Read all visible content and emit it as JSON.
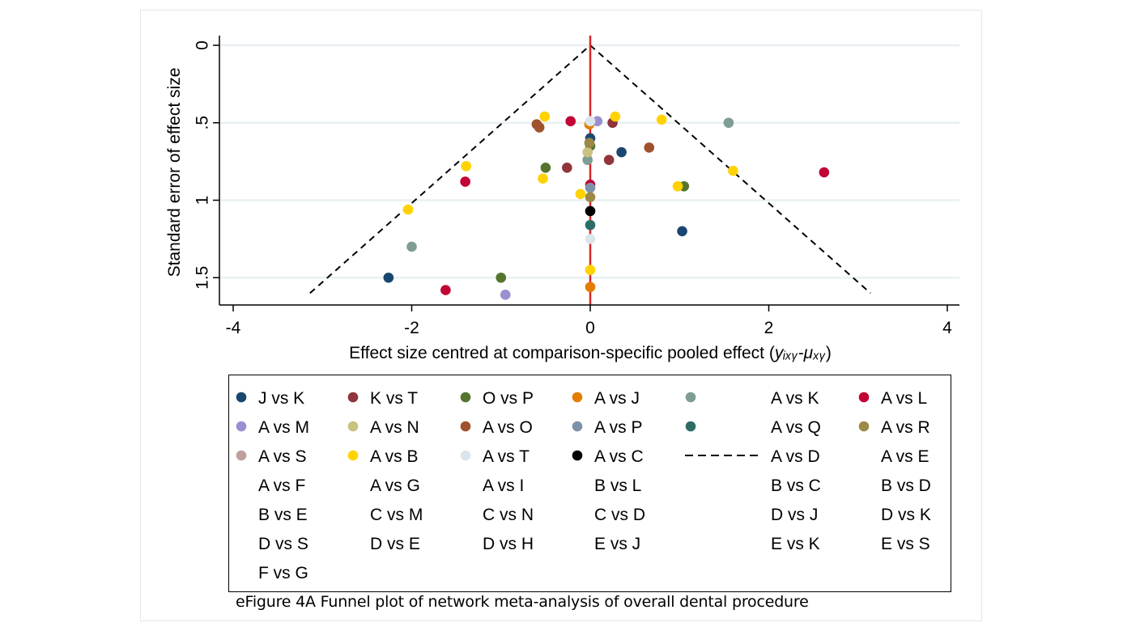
{
  "caption": "eFigure 4A Funnel plot of network meta-analysis of overall dental procedure",
  "chart_data": {
    "type": "scatter",
    "xlabel": "Effect size centred at comparison-specific pooled effect (",
    "xlabel_math": "yᵢₓᵧ-μₓᵧ",
    "xlabel_close": ")",
    "ylabel": "Standard error of effect size",
    "xlim": [
      -4,
      4
    ],
    "ylim": [
      0,
      1.6
    ],
    "y_reversed": true,
    "x_ticks": [
      -4,
      -2,
      0,
      2,
      4
    ],
    "x_tick_labels": [
      "-4",
      "-2",
      "0",
      "2",
      "4"
    ],
    "y_ticks": [
      0,
      0.5,
      1,
      1.5
    ],
    "y_tick_labels": [
      "0",
      ".5",
      "1",
      "1.5"
    ],
    "reference_line": {
      "x": 0,
      "color": "#d62728"
    },
    "funnel_lines": {
      "apex": [
        0,
        0
      ],
      "left_end": [
        -3.14,
        1.6
      ],
      "right_end": [
        3.14,
        1.6
      ]
    },
    "grid": "horizontal",
    "legend_position": "bottom",
    "series": [
      {
        "name": "J vs K",
        "color": "#1a476f",
        "points": [
          [
            0,
            0.6
          ],
          [
            0.35,
            0.69
          ],
          [
            1.03,
            1.2
          ],
          [
            -2.26,
            1.5
          ]
        ]
      },
      {
        "name": "K vs T",
        "color": "#90353b",
        "points": [
          [
            -0.26,
            0.79
          ],
          [
            0.21,
            0.74
          ],
          [
            0.25,
            0.5
          ]
        ]
      },
      {
        "name": "O vs P",
        "color": "#55752f",
        "points": [
          [
            -0.5,
            0.79
          ],
          [
            0,
            0.65
          ],
          [
            1.05,
            0.91
          ],
          [
            -1.0,
            1.5
          ]
        ]
      },
      {
        "name": "A vs J",
        "color": "#e37e00",
        "points": [
          [
            0,
            1.56
          ],
          [
            -0.01,
            0.51
          ]
        ]
      },
      {
        "name": "A vs K",
        "color": "#7e9d94",
        "points": [
          [
            1.55,
            0.5
          ],
          [
            -2.0,
            1.3
          ],
          [
            -0.03,
            0.74
          ]
        ]
      },
      {
        "name": "A vs L",
        "color": "#c10534",
        "points": [
          [
            -0.22,
            0.49
          ],
          [
            -1.4,
            0.88
          ],
          [
            2.62,
            0.82
          ],
          [
            -1.62,
            1.58
          ],
          [
            0,
            0.9
          ]
        ]
      },
      {
        "name": "A vs M",
        "color": "#9b8fd0",
        "points": [
          [
            -0.95,
            1.61
          ],
          [
            0.08,
            0.49
          ]
        ]
      },
      {
        "name": "A vs N",
        "color": "#cac27e",
        "points": [
          [
            -0.03,
            0.69
          ]
        ]
      },
      {
        "name": "A vs O",
        "color": "#a0522d",
        "points": [
          [
            -0.6,
            0.51
          ],
          [
            -0.57,
            0.53
          ],
          [
            0.66,
            0.66
          ]
        ]
      },
      {
        "name": "A vs P",
        "color": "#7b92a8",
        "points": [
          [
            0,
            0.92
          ]
        ]
      },
      {
        "name": "A vs Q",
        "color": "#2d6d66",
        "points": [
          [
            0,
            1.16
          ]
        ]
      },
      {
        "name": "A vs R",
        "color": "#9c8847",
        "points": [
          [
            0,
            0.98
          ],
          [
            -0.01,
            0.63
          ]
        ]
      },
      {
        "name": "A vs S",
        "color": "#bfa19c",
        "points": [
          [
            0,
            1.07
          ]
        ]
      },
      {
        "name": "A vs B",
        "color": "#ffd200",
        "points": [
          [
            -0.51,
            0.46
          ],
          [
            -1.39,
            0.78
          ],
          [
            -0.53,
            0.86
          ],
          [
            -2.04,
            1.06
          ],
          [
            0.28,
            0.46
          ],
          [
            0.8,
            0.48
          ],
          [
            1.6,
            0.81
          ],
          [
            0.98,
            0.91
          ],
          [
            -0.11,
            0.96
          ],
          [
            0,
            1.45
          ]
        ]
      },
      {
        "name": "A vs T",
        "color": "#d9e6eb",
        "points": [
          [
            0,
            1.25
          ],
          [
            0,
            0.49
          ]
        ]
      },
      {
        "name": "A vs C",
        "color": "#000000",
        "points": [
          [
            0,
            1.07
          ]
        ]
      }
    ],
    "legend": {
      "rows": [
        [
          "J vs K",
          "K vs T",
          "O vs P",
          "A vs J",
          "A vs K",
          "A vs L"
        ],
        [
          "A vs M",
          "A vs N",
          "A vs O",
          "A vs P",
          "A vs Q",
          "A vs R"
        ],
        [
          "A vs S",
          "A vs B",
          "A vs T",
          "A vs C",
          "A vs D",
          "A vs E"
        ],
        [
          "A vs F",
          "A vs G",
          "A vs I",
          "B vs L",
          "B vs C",
          "B vs D"
        ],
        [
          "B vs E",
          "C vs M",
          "C vs N",
          "C vs D",
          "D vs J",
          "D vs K"
        ],
        [
          "D vs S",
          "D vs E",
          "D vs H",
          "E vs J",
          "E vs K",
          "E vs S"
        ],
        [
          "F vs G"
        ]
      ],
      "marker_colors": {
        "J vs K": "#1a476f",
        "K vs T": "#90353b",
        "O vs P": "#55752f",
        "A vs J": "#e37e00",
        "A vs K": "#7e9d94",
        "A vs L": "#c10534",
        "A vs M": "#9b8fd0",
        "A vs N": "#cac27e",
        "A vs O": "#a0522d",
        "A vs P": "#7b92a8",
        "A vs Q": "#2d6d66",
        "A vs R": "#9c8847",
        "A vs S": "#bfa19c",
        "A vs B": "#ffd200",
        "A vs T": "#d9e6eb",
        "A vs C": "#000000"
      },
      "dashed_entry": "A vs D"
    }
  }
}
